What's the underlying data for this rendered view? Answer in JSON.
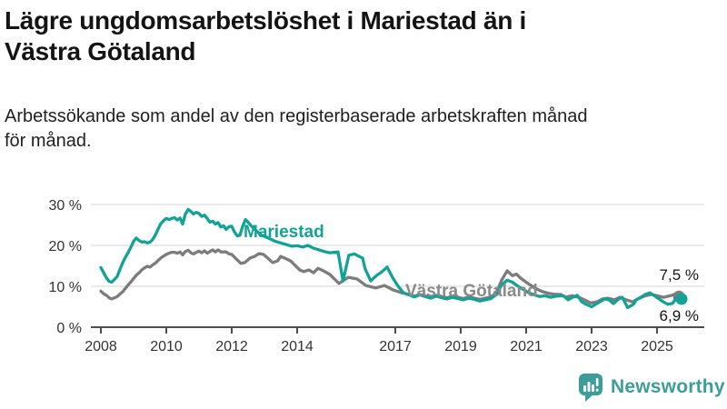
{
  "header": {
    "title_lines": [
      "Lägre ungdomsarbetslöshet i Mariestad än i",
      "Västra Götaland"
    ],
    "subtitle_lines": [
      "Arbetssökande som andel av den registerbaserade arbetskraften månad",
      "för månad."
    ]
  },
  "chart_data": {
    "type": "line",
    "title": "Lägre ungdomsarbetslöshet i Mariestad än i Västra Götaland",
    "subtitle": "Arbetssökande som andel av den registerbaserade arbetskraften månad för månad.",
    "unit": "%",
    "x_range": [
      2007.85,
      2026.2
    ],
    "y_range": [
      0,
      32
    ],
    "grid": "horizontal-only",
    "legend_position": "inline-labels",
    "x_ticks": [
      {
        "label": "2008",
        "value": 2008
      },
      {
        "label": "2010",
        "value": 2010
      },
      {
        "label": "2012",
        "value": 2012
      },
      {
        "label": "2014",
        "value": 2014
      },
      {
        "label": "2017",
        "value": 2017
      },
      {
        "label": "2019",
        "value": 2019
      },
      {
        "label": "2021",
        "value": 2021
      },
      {
        "label": "2023",
        "value": 2023
      },
      {
        "label": "2025",
        "value": 2025
      }
    ],
    "y_ticks": [
      {
        "label": "0 %",
        "value": 0
      },
      {
        "label": "10 %",
        "value": 10
      },
      {
        "label": "20 %",
        "value": 20
      },
      {
        "label": "30 %",
        "value": 30
      }
    ],
    "series": [
      {
        "name": "Västra Götaland",
        "color": "#7c7c7c",
        "label_color": "#8a8a8a",
        "end_label": "7,5 %",
        "end_value": 7.5,
        "points": [
          [
            2008.0,
            8.8
          ],
          [
            2008.08,
            8.2
          ],
          [
            2008.17,
            7.8
          ],
          [
            2008.25,
            7.2
          ],
          [
            2008.33,
            6.9
          ],
          [
            2008.42,
            7.2
          ],
          [
            2008.5,
            7.5
          ],
          [
            2008.58,
            8.1
          ],
          [
            2008.67,
            8.7
          ],
          [
            2008.75,
            9.5
          ],
          [
            2008.83,
            10.3
          ],
          [
            2008.92,
            11.1
          ],
          [
            2009.0,
            11.9
          ],
          [
            2009.08,
            12.7
          ],
          [
            2009.17,
            13.3
          ],
          [
            2009.25,
            14.0
          ],
          [
            2009.33,
            14.5
          ],
          [
            2009.42,
            14.9
          ],
          [
            2009.5,
            14.7
          ],
          [
            2009.58,
            15.2
          ],
          [
            2009.67,
            15.7
          ],
          [
            2009.75,
            16.3
          ],
          [
            2009.83,
            16.9
          ],
          [
            2009.92,
            17.4
          ],
          [
            2010.0,
            17.8
          ],
          [
            2010.08,
            18.1
          ],
          [
            2010.17,
            18.3
          ],
          [
            2010.25,
            18.3
          ],
          [
            2010.33,
            18.1
          ],
          [
            2010.42,
            18.4
          ],
          [
            2010.5,
            17.7
          ],
          [
            2010.58,
            18.5
          ],
          [
            2010.67,
            18.8
          ],
          [
            2010.75,
            18.2
          ],
          [
            2010.83,
            17.9
          ],
          [
            2010.92,
            18.3
          ],
          [
            2011.0,
            18.6
          ],
          [
            2011.08,
            18.2
          ],
          [
            2011.17,
            18.7
          ],
          [
            2011.25,
            18.1
          ],
          [
            2011.33,
            18.5
          ],
          [
            2011.42,
            18.9
          ],
          [
            2011.5,
            18.4
          ],
          [
            2011.58,
            18.9
          ],
          [
            2011.67,
            18.4
          ],
          [
            2011.83,
            18.4
          ],
          [
            2011.92,
            17.9
          ],
          [
            2012.0,
            17.8
          ],
          [
            2012.14,
            16.7
          ],
          [
            2012.28,
            15.6
          ],
          [
            2012.4,
            15.8
          ],
          [
            2012.56,
            16.9
          ],
          [
            2012.7,
            17.3
          ],
          [
            2012.83,
            18.0
          ],
          [
            2012.97,
            17.8
          ],
          [
            2013.1,
            16.9
          ],
          [
            2013.25,
            15.8
          ],
          [
            2013.4,
            16.2
          ],
          [
            2013.5,
            17.3
          ],
          [
            2013.67,
            16.7
          ],
          [
            2013.8,
            16.2
          ],
          [
            2013.94,
            15.1
          ],
          [
            2014.08,
            14.0
          ],
          [
            2014.2,
            13.6
          ],
          [
            2014.36,
            14.0
          ],
          [
            2014.5,
            13.3
          ],
          [
            2014.64,
            14.4
          ],
          [
            2014.8,
            13.8
          ],
          [
            2015.0,
            12.9
          ],
          [
            2015.28,
            10.7
          ],
          [
            2015.56,
            12.2
          ],
          [
            2015.83,
            11.8
          ],
          [
            2016.1,
            10.2
          ],
          [
            2016.4,
            9.6
          ],
          [
            2016.67,
            10.2
          ],
          [
            2016.94,
            9.1
          ],
          [
            2017.2,
            8.4
          ],
          [
            2017.42,
            8.0
          ],
          [
            2017.58,
            7.6
          ],
          [
            2017.75,
            8.0
          ],
          [
            2017.92,
            7.7
          ],
          [
            2018.08,
            7.4
          ],
          [
            2018.25,
            7.8
          ],
          [
            2018.42,
            7.5
          ],
          [
            2018.58,
            7.2
          ],
          [
            2018.75,
            7.6
          ],
          [
            2018.92,
            7.3
          ],
          [
            2019.08,
            7.0
          ],
          [
            2019.25,
            7.4
          ],
          [
            2019.42,
            7.1
          ],
          [
            2019.58,
            6.8
          ],
          [
            2019.75,
            7.1
          ],
          [
            2019.92,
            7.4
          ],
          [
            2020.08,
            8.3
          ],
          [
            2020.25,
            11.5
          ],
          [
            2020.42,
            13.8
          ],
          [
            2020.58,
            12.6
          ],
          [
            2020.7,
            13.0
          ],
          [
            2020.83,
            12.0
          ],
          [
            2021.0,
            11.0
          ],
          [
            2021.17,
            10.1
          ],
          [
            2021.33,
            9.3
          ],
          [
            2021.5,
            8.7
          ],
          [
            2021.67,
            8.3
          ],
          [
            2021.83,
            8.1
          ],
          [
            2022.06,
            8.0
          ],
          [
            2022.2,
            7.3
          ],
          [
            2022.4,
            7.7
          ],
          [
            2022.6,
            7.3
          ],
          [
            2022.78,
            6.7
          ],
          [
            2022.97,
            5.9
          ],
          [
            2023.17,
            6.2
          ],
          [
            2023.33,
            6.9
          ],
          [
            2023.5,
            7.1
          ],
          [
            2023.7,
            6.7
          ],
          [
            2023.86,
            7.3
          ],
          [
            2024.06,
            6.7
          ],
          [
            2024.25,
            6.2
          ],
          [
            2024.42,
            6.9
          ],
          [
            2024.64,
            7.7
          ],
          [
            2024.83,
            8.0
          ],
          [
            2025.0,
            7.7
          ],
          [
            2025.2,
            7.3
          ],
          [
            2025.4,
            7.7
          ],
          [
            2025.56,
            8.1
          ],
          [
            2025.67,
            7.5
          ]
        ]
      },
      {
        "name": "Mariestad",
        "color": "#12a296",
        "label_color": "#12a296",
        "end_label": "6,9 %",
        "end_value": 6.9,
        "points": [
          [
            2008.0,
            14.6
          ],
          [
            2008.08,
            13.4
          ],
          [
            2008.17,
            12.1
          ],
          [
            2008.25,
            11.2
          ],
          [
            2008.33,
            11.0
          ],
          [
            2008.42,
            11.7
          ],
          [
            2008.5,
            12.4
          ],
          [
            2008.58,
            14.1
          ],
          [
            2008.67,
            15.8
          ],
          [
            2008.75,
            17.1
          ],
          [
            2008.83,
            18.2
          ],
          [
            2008.92,
            19.6
          ],
          [
            2009.0,
            21.0
          ],
          [
            2009.08,
            21.8
          ],
          [
            2009.17,
            21.2
          ],
          [
            2009.25,
            20.8
          ],
          [
            2009.33,
            20.9
          ],
          [
            2009.42,
            20.6
          ],
          [
            2009.5,
            20.8
          ],
          [
            2009.58,
            21.4
          ],
          [
            2009.67,
            22.6
          ],
          [
            2009.75,
            24.0
          ],
          [
            2009.83,
            25.3
          ],
          [
            2009.92,
            26.1
          ],
          [
            2010.0,
            26.6
          ],
          [
            2010.08,
            26.3
          ],
          [
            2010.17,
            26.6
          ],
          [
            2010.25,
            26.8
          ],
          [
            2010.33,
            26.2
          ],
          [
            2010.42,
            26.7
          ],
          [
            2010.5,
            25.2
          ],
          [
            2010.58,
            27.6
          ],
          [
            2010.67,
            28.8
          ],
          [
            2010.75,
            28.3
          ],
          [
            2010.83,
            27.7
          ],
          [
            2010.92,
            28.1
          ],
          [
            2011.0,
            27.8
          ],
          [
            2011.08,
            27.1
          ],
          [
            2011.17,
            27.4
          ],
          [
            2011.25,
            26.6
          ],
          [
            2011.33,
            25.7
          ],
          [
            2011.42,
            25.9
          ],
          [
            2011.5,
            25.2
          ],
          [
            2011.58,
            25.6
          ],
          [
            2011.67,
            24.5
          ],
          [
            2011.75,
            24.8
          ],
          [
            2011.83,
            23.9
          ],
          [
            2011.92,
            24.6
          ],
          [
            2012.0,
            24.7
          ],
          [
            2012.08,
            23.3
          ],
          [
            2012.17,
            22.3
          ],
          [
            2012.25,
            22.5
          ],
          [
            2012.33,
            24.6
          ],
          [
            2012.42,
            26.3
          ],
          [
            2012.5,
            25.7
          ],
          [
            2012.58,
            24.9
          ],
          [
            2012.67,
            24.2
          ],
          [
            2012.75,
            23.6
          ],
          [
            2012.83,
            23.0
          ],
          [
            2012.92,
            22.5
          ],
          [
            2013.0,
            22.2
          ],
          [
            2013.17,
            21.6
          ],
          [
            2013.33,
            21.0
          ],
          [
            2013.5,
            20.6
          ],
          [
            2013.67,
            20.2
          ],
          [
            2013.83,
            19.8
          ],
          [
            2014.0,
            19.9
          ],
          [
            2014.17,
            19.6
          ],
          [
            2014.33,
            20.0
          ],
          [
            2014.5,
            19.3
          ],
          [
            2014.67,
            18.9
          ],
          [
            2014.83,
            18.5
          ],
          [
            2015.0,
            18.2
          ],
          [
            2015.25,
            18.4
          ],
          [
            2015.4,
            11.3
          ],
          [
            2015.58,
            17.6
          ],
          [
            2015.75,
            17.9
          ],
          [
            2015.92,
            17.2
          ],
          [
            2016.0,
            16.9
          ],
          [
            2016.08,
            14.2
          ],
          [
            2016.25,
            11.3
          ],
          [
            2016.42,
            12.6
          ],
          [
            2016.58,
            13.5
          ],
          [
            2016.75,
            14.7
          ],
          [
            2016.92,
            12.1
          ],
          [
            2017.08,
            10.1
          ],
          [
            2017.25,
            8.4
          ],
          [
            2017.42,
            7.9
          ],
          [
            2017.58,
            7.4
          ],
          [
            2017.75,
            7.9
          ],
          [
            2017.92,
            7.5
          ],
          [
            2018.08,
            7.1
          ],
          [
            2018.25,
            7.6
          ],
          [
            2018.42,
            7.2
          ],
          [
            2018.58,
            6.9
          ],
          [
            2018.75,
            7.3
          ],
          [
            2018.92,
            7.0
          ],
          [
            2019.08,
            6.7
          ],
          [
            2019.25,
            7.1
          ],
          [
            2019.42,
            6.8
          ],
          [
            2019.58,
            6.4
          ],
          [
            2019.75,
            6.7
          ],
          [
            2019.92,
            7.0
          ],
          [
            2020.08,
            7.9
          ],
          [
            2020.25,
            10.3
          ],
          [
            2020.42,
            11.5
          ],
          [
            2020.58,
            11.0
          ],
          [
            2020.75,
            10.0
          ],
          [
            2020.92,
            9.2
          ],
          [
            2021.08,
            8.4
          ],
          [
            2021.25,
            7.9
          ],
          [
            2021.42,
            7.5
          ],
          [
            2021.58,
            7.7
          ],
          [
            2021.75,
            7.3
          ],
          [
            2021.92,
            7.6
          ],
          [
            2022.14,
            7.7
          ],
          [
            2022.28,
            6.7
          ],
          [
            2022.42,
            7.3
          ],
          [
            2022.56,
            7.8
          ],
          [
            2022.7,
            6.2
          ],
          [
            2022.83,
            5.6
          ],
          [
            2023.0,
            5.0
          ],
          [
            2023.25,
            6.2
          ],
          [
            2023.4,
            6.9
          ],
          [
            2023.53,
            6.7
          ],
          [
            2023.67,
            5.8
          ],
          [
            2023.83,
            6.9
          ],
          [
            2023.94,
            7.3
          ],
          [
            2024.1,
            4.8
          ],
          [
            2024.28,
            5.6
          ],
          [
            2024.36,
            6.7
          ],
          [
            2024.5,
            7.3
          ],
          [
            2024.64,
            8.0
          ],
          [
            2024.78,
            8.4
          ],
          [
            2024.92,
            7.7
          ],
          [
            2025.06,
            6.9
          ],
          [
            2025.19,
            6.2
          ],
          [
            2025.33,
            5.6
          ],
          [
            2025.47,
            5.8
          ],
          [
            2025.61,
            7.3
          ],
          [
            2025.75,
            6.9
          ]
        ]
      }
    ]
  },
  "branding": {
    "logo_text": "Newsworthy",
    "logo_color": "#3d9d99",
    "logo_icon": "bar-chart-speech-bubble-icon"
  },
  "colors": {
    "mariestad_teal": "#12a296",
    "vastra_gotaland_gray": "#7c7c7c",
    "gridline": "#dddddd",
    "axis": "#4d4d4d",
    "text_dark": "#141414"
  }
}
